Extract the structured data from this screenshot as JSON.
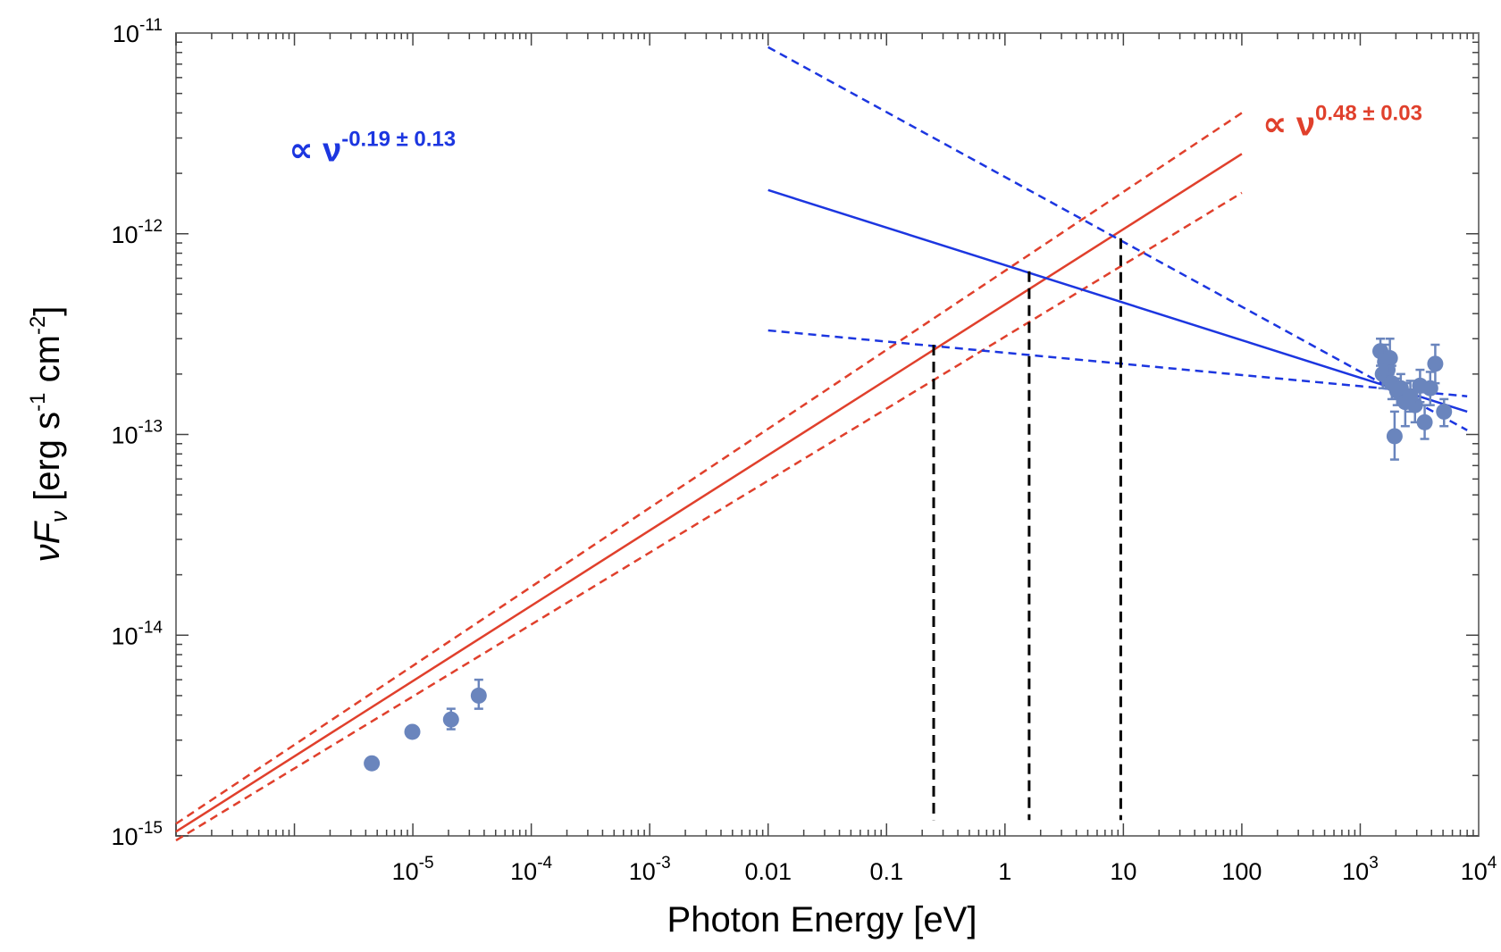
{
  "chart_data": {
    "type": "scatter",
    "scale": {
      "x": "log",
      "y": "log"
    },
    "xlim": [
      1e-07,
      10000
    ],
    "ylim": [
      1e-15,
      1e-11
    ],
    "xlabel": "Photon Energy [eV]",
    "ylabel": {
      "main": "νF",
      "sub": "ν",
      "unit_open": " [erg s",
      "s_exp": "-1",
      "unit_mid": " cm",
      "cm_exp": "-2",
      "unit_close": "]"
    },
    "x_ticks": [
      {
        "value": 1e-05,
        "base": "10",
        "exp": "-5"
      },
      {
        "value": 0.0001,
        "base": "10",
        "exp": "-4"
      },
      {
        "value": 0.001,
        "base": "10",
        "exp": "-3"
      },
      {
        "value": 0.01,
        "text": "0.01"
      },
      {
        "value": 0.1,
        "text": "0.1"
      },
      {
        "value": 1,
        "text": "1"
      },
      {
        "value": 10,
        "text": "10"
      },
      {
        "value": 100,
        "text": "100"
      },
      {
        "value": 1000,
        "base": "10",
        "exp": "3"
      },
      {
        "value": 10000,
        "base": "10",
        "exp": "4"
      }
    ],
    "y_ticks": [
      {
        "value": 1e-11,
        "base": "10",
        "exp": "-11"
      },
      {
        "value": 1e-12,
        "base": "10",
        "exp": "-12"
      },
      {
        "value": 1e-13,
        "base": "10",
        "exp": "-13"
      },
      {
        "value": 1e-14,
        "base": "10",
        "exp": "-14"
      },
      {
        "value": 1e-15,
        "base": "10",
        "exp": "-15"
      }
    ],
    "data_points": {
      "color": "#6a85bd",
      "points": [
        {
          "x": 4.5e-06,
          "y": 2.3e-15
        },
        {
          "x": 9.9e-06,
          "y": 3.3e-15
        },
        {
          "x": 2.1e-05,
          "y": 3.8e-15,
          "yerr": [
            3.4e-15,
            4.3e-15
          ]
        },
        {
          "x": 3.6e-05,
          "y": 5e-15,
          "yerr": [
            4.3e-15,
            6e-15
          ]
        },
        {
          "x": 1480,
          "y": 2.6e-13,
          "yerr": [
            2.2e-13,
            3e-13
          ]
        },
        {
          "x": 1550,
          "y": 2e-13,
          "yerr": [
            1.7e-13,
            2.4e-13
          ]
        },
        {
          "x": 1620,
          "y": 2.3e-13,
          "yerr": [
            2e-13,
            2.8e-13
          ]
        },
        {
          "x": 1700,
          "y": 2.1e-13,
          "yerr": [
            1.8e-13,
            2.5e-13
          ]
        },
        {
          "x": 1780,
          "y": 2.4e-13,
          "yerr": [
            2e-13,
            3e-13
          ]
        },
        {
          "x": 1850,
          "y": 1.8e-13,
          "yerr": [
            1.5e-13,
            2.2e-13
          ]
        },
        {
          "x": 1950,
          "y": 9.8e-14,
          "yerr": [
            7.5e-14,
            1.3e-13
          ]
        },
        {
          "x": 2050,
          "y": 1.65e-13,
          "yerr": [
            1.4e-13,
            1.9e-13
          ]
        },
        {
          "x": 2200,
          "y": 1.7e-13,
          "yerr": [
            1.45e-13,
            2e-13
          ]
        },
        {
          "x": 2400,
          "y": 1.45e-13,
          "yerr": [
            1.1e-13,
            1.8e-13
          ]
        },
        {
          "x": 2650,
          "y": 1.55e-13,
          "yerr": [
            1.3e-13,
            1.85e-13
          ]
        },
        {
          "x": 2900,
          "y": 1.4e-13,
          "yerr": [
            1.15e-13,
            1.65e-13
          ]
        },
        {
          "x": 3200,
          "y": 1.75e-13,
          "yerr": [
            1.45e-13,
            2.1e-13
          ]
        },
        {
          "x": 3500,
          "y": 1.15e-13,
          "yerr": [
            9.5e-14,
            1.4e-13
          ]
        },
        {
          "x": 3900,
          "y": 1.7e-13,
          "yerr": [
            1.4e-13,
            2.05e-13
          ]
        },
        {
          "x": 4300,
          "y": 2.25e-13,
          "yerr": [
            1.8e-13,
            2.8e-13
          ]
        },
        {
          "x": 5100,
          "y": 1.3e-13,
          "yerr": [
            1.1e-13,
            1.5e-13
          ]
        }
      ]
    },
    "fit_lines": [
      {
        "name": "red-fit",
        "color": "#e0402c",
        "style": "solid",
        "points": [
          [
            1e-07,
            1.05e-15
          ],
          [
            100,
            2.5e-12
          ]
        ]
      },
      {
        "name": "red-fit-upper",
        "color": "#e0402c",
        "style": "dashed",
        "points": [
          [
            1e-07,
            1.15e-15
          ],
          [
            100,
            4e-12
          ]
        ]
      },
      {
        "name": "red-fit-lower",
        "color": "#e0402c",
        "style": "dashed",
        "points": [
          [
            1e-07,
            9.5e-16
          ],
          [
            100,
            1.6e-12
          ]
        ]
      },
      {
        "name": "blue-fit",
        "color": "#1c36e0",
        "style": "solid",
        "points": [
          [
            0.01,
            1.65e-12
          ],
          [
            8000,
            1.3e-13
          ]
        ]
      },
      {
        "name": "blue-fit-upper",
        "color": "#1c36e0",
        "style": "dashed",
        "points": [
          [
            0.01,
            8.5e-12
          ],
          [
            8000,
            1.05e-13
          ]
        ]
      },
      {
        "name": "blue-fit-lower",
        "color": "#1c36e0",
        "style": "dashed",
        "points": [
          [
            0.01,
            3.3e-13
          ],
          [
            8000,
            1.55e-13
          ]
        ]
      }
    ],
    "vertical_markers": [
      {
        "x": 0.25,
        "y_top": 2.8e-13,
        "y_bottom": 1.2e-15
      },
      {
        "x": 1.6,
        "y_top": 6.5e-13,
        "y_bottom": 1.2e-15
      },
      {
        "x": 9.5,
        "y_top": 9.5e-13,
        "y_bottom": 1.2e-15
      }
    ],
    "annotations": [
      {
        "name": "blue-slope-label",
        "color": "#1c36e0",
        "prefix": "∝ ν",
        "exp": "-0.19 ± 0.13",
        "x": 9e-07,
        "y": 2.3e-12
      },
      {
        "name": "red-slope-label",
        "color": "#e0402c",
        "prefix": "∝ ν",
        "exp": "0.48 ± 0.03",
        "x": 150,
        "y": 3.1e-12
      }
    ]
  }
}
